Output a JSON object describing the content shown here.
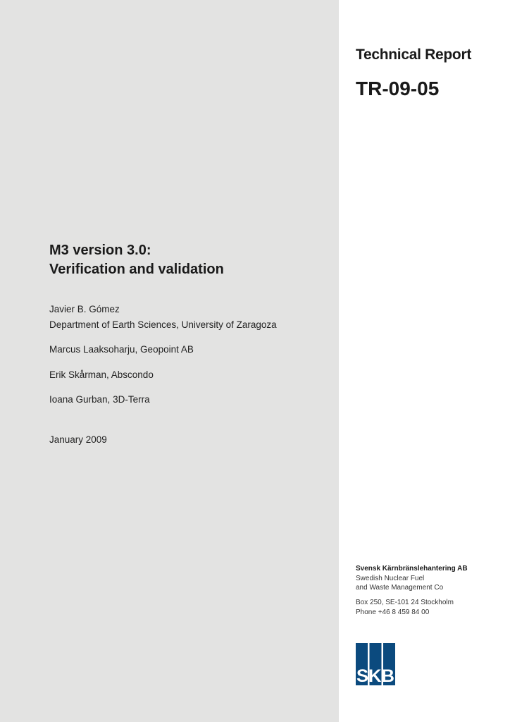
{
  "header": {
    "series": "Technical Report",
    "number": "TR-09-05"
  },
  "title": {
    "line1": "M3 version 3.0:",
    "line2": "Verification and validation"
  },
  "authors": [
    "Javier B. Gómez",
    "Department of Earth Sciences, University of Zaragoza",
    "Marcus Laaksoharju, Geopoint AB",
    "Erik Skårman, Abscondo",
    "Ioana Gurban, 3D-Terra"
  ],
  "date": "January 2009",
  "publisher": {
    "name": "Svensk Kärnbränslehantering AB",
    "english_line1": "Swedish Nuclear Fuel",
    "english_line2": "and Waste Management Co",
    "address": "Box 250, SE-101 24 Stockholm",
    "phone": "Phone +46 8 459 84 00"
  },
  "logo": {
    "text": "SKB",
    "color": "#0b4a7e"
  },
  "colors": {
    "left_panel": "#e3e3e2"
  }
}
